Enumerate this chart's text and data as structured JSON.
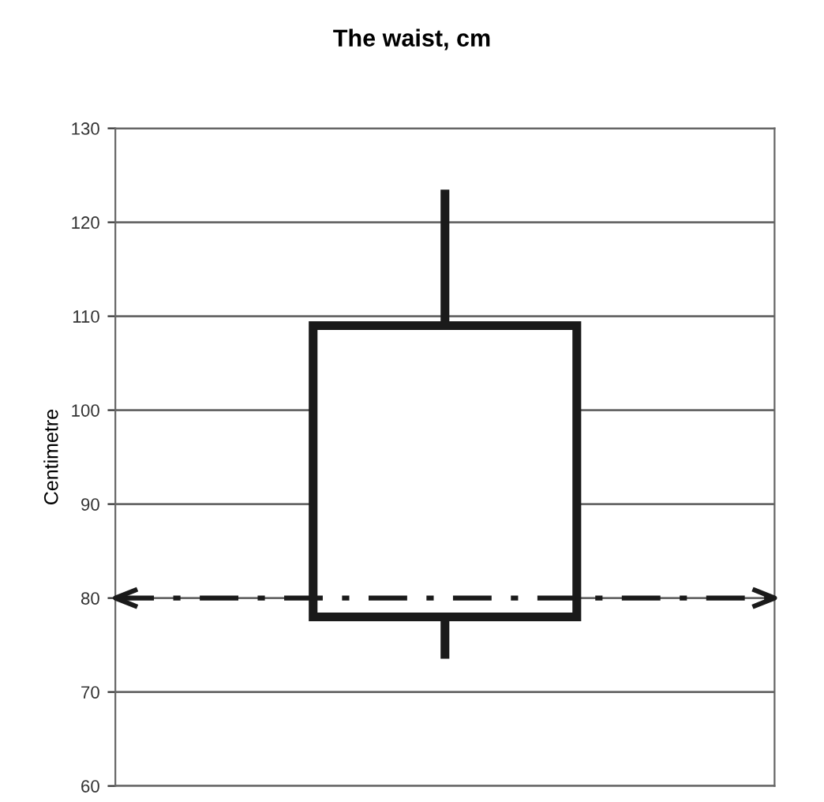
{
  "chart_data": {
    "type": "box",
    "title": "The waist, cm",
    "ylabel": "Centimetre",
    "categories": [
      null
    ],
    "boxes": [
      {
        "low": 74,
        "q1": 78,
        "median": null,
        "q3": 109,
        "high": 123
      }
    ],
    "color": "#1a1a1a",
    "ylim": [
      60,
      130
    ],
    "yticks": [
      60,
      70,
      80,
      90,
      100,
      110,
      120,
      130
    ],
    "grid": "y",
    "ref_lines": [
      {
        "axis": "y",
        "value": 80,
        "label": null,
        "color": "#1a1a1a",
        "line_style": "dashdot"
      }
    ]
  }
}
